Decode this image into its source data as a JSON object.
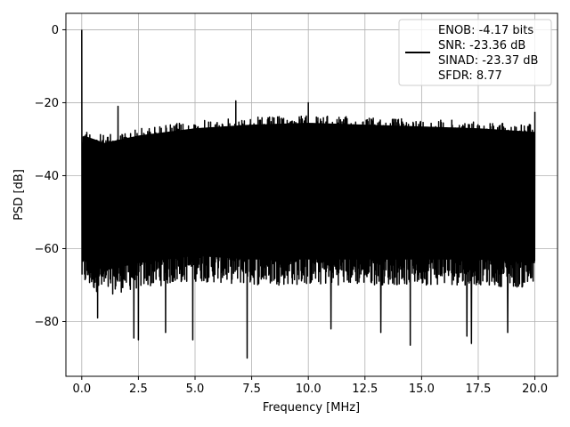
{
  "chart_data": {
    "type": "line",
    "xlabel": "Frequency [MHz]",
    "ylabel": "PSD [dB]",
    "xlim": [
      -0.7,
      21.0
    ],
    "ylim": [
      -95,
      4.5
    ],
    "xticks": [
      0.0,
      2.5,
      5.0,
      7.5,
      10.0,
      12.5,
      15.0,
      17.5,
      20.0
    ],
    "xtick_labels": [
      "0.0",
      "2.5",
      "5.0",
      "7.5",
      "10.0",
      "12.5",
      "15.0",
      "17.5",
      "20.0"
    ],
    "yticks": [
      0,
      -20,
      -40,
      -60,
      -80
    ],
    "ytick_labels": [
      "0",
      "−20",
      "−40",
      "−60",
      "−80"
    ],
    "grid": true,
    "legend_position": "top-right",
    "series": [
      {
        "color": "#000000",
        "x_range": [
          0.0,
          20.0
        ],
        "upper_envelope": {
          "x": [
            0.0,
            0.1,
            1.0,
            2.5,
            5.0,
            7.5,
            10.0,
            12.5,
            15.0,
            17.5,
            20.0
          ],
          "y": [
            -30,
            -27,
            -29,
            -27,
            -25,
            -24,
            -23.5,
            -24,
            -24.5,
            -25,
            -26
          ]
        },
        "lower_envelope": {
          "x": [
            0.0,
            1.0,
            2.5,
            5.0,
            7.5,
            10.0,
            12.5,
            15.0,
            17.5,
            20.0
          ],
          "y": [
            -67,
            -70,
            -68,
            -66,
            -67,
            -67,
            -67,
            -67,
            -67,
            -68
          ]
        },
        "peaks": [
          {
            "x": 0.0,
            "y": 0
          },
          {
            "x": 1.6,
            "y": -21
          },
          {
            "x": 6.8,
            "y": -19.5
          },
          {
            "x": 10.0,
            "y": -20
          },
          {
            "x": 20.0,
            "y": -22.5
          }
        ],
        "dips": [
          {
            "x": 0.7,
            "y": -79
          },
          {
            "x": 2.3,
            "y": -84.5
          },
          {
            "x": 2.5,
            "y": -85
          },
          {
            "x": 3.7,
            "y": -83
          },
          {
            "x": 4.9,
            "y": -85
          },
          {
            "x": 7.3,
            "y": -90
          },
          {
            "x": 11.0,
            "y": -82
          },
          {
            "x": 13.2,
            "y": -83
          },
          {
            "x": 14.5,
            "y": -86.5
          },
          {
            "x": 17.0,
            "y": -84
          },
          {
            "x": 17.2,
            "y": -86
          },
          {
            "x": 18.8,
            "y": -83
          }
        ]
      }
    ],
    "legend": {
      "entries": [
        "ENOB: -4.17 bits",
        "SNR: -23.36 dB",
        "SINAD: -23.37 dB",
        "SFDR: 8.77"
      ]
    }
  }
}
